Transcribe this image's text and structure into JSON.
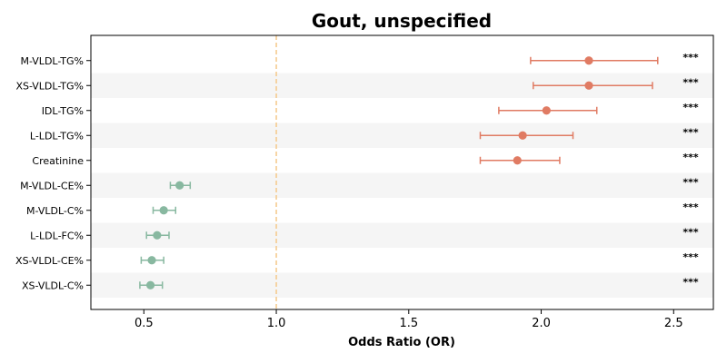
{
  "chart_data": {
    "type": "forest",
    "title": "Gout, unspecified",
    "xlabel": "Odds Ratio (OR)",
    "ylabel": "",
    "xlim": [
      0.3,
      2.65
    ],
    "xticks": [
      0.5,
      1.0,
      1.5,
      2.0,
      2.5
    ],
    "xtick_labels": [
      "0.5",
      "1.0",
      "1.5",
      "2.0",
      "2.5"
    ],
    "reference_line": 1.0,
    "grid": false,
    "row_banding": true,
    "colors": {
      "risk": "#e07b63",
      "protective": "#88b8a0",
      "reference": "#f5c98a",
      "band": "#f5f5f5"
    },
    "categories": [
      "M-VLDL-TG%",
      "XS-VLDL-TG%",
      "IDL-TG%",
      "L-LDL-TG%",
      "Creatinine",
      "M-VLDL-CE%",
      "M-VLDL-C%",
      "L-LDL-FC%",
      "XS-VLDL-CE%",
      "XS-VLDL-C%"
    ],
    "or": [
      2.18,
      2.18,
      2.02,
      1.93,
      1.91,
      0.635,
      0.575,
      0.55,
      0.53,
      0.525
    ],
    "ci_low": [
      1.96,
      1.97,
      1.84,
      1.77,
      1.77,
      0.6,
      0.535,
      0.51,
      0.49,
      0.485
    ],
    "ci_high": [
      2.44,
      2.42,
      2.21,
      2.12,
      2.07,
      0.675,
      0.62,
      0.595,
      0.575,
      0.57
    ],
    "significance": [
      "***",
      "***",
      "***",
      "***",
      "***",
      "***",
      "***",
      "***",
      "***",
      "***"
    ]
  }
}
